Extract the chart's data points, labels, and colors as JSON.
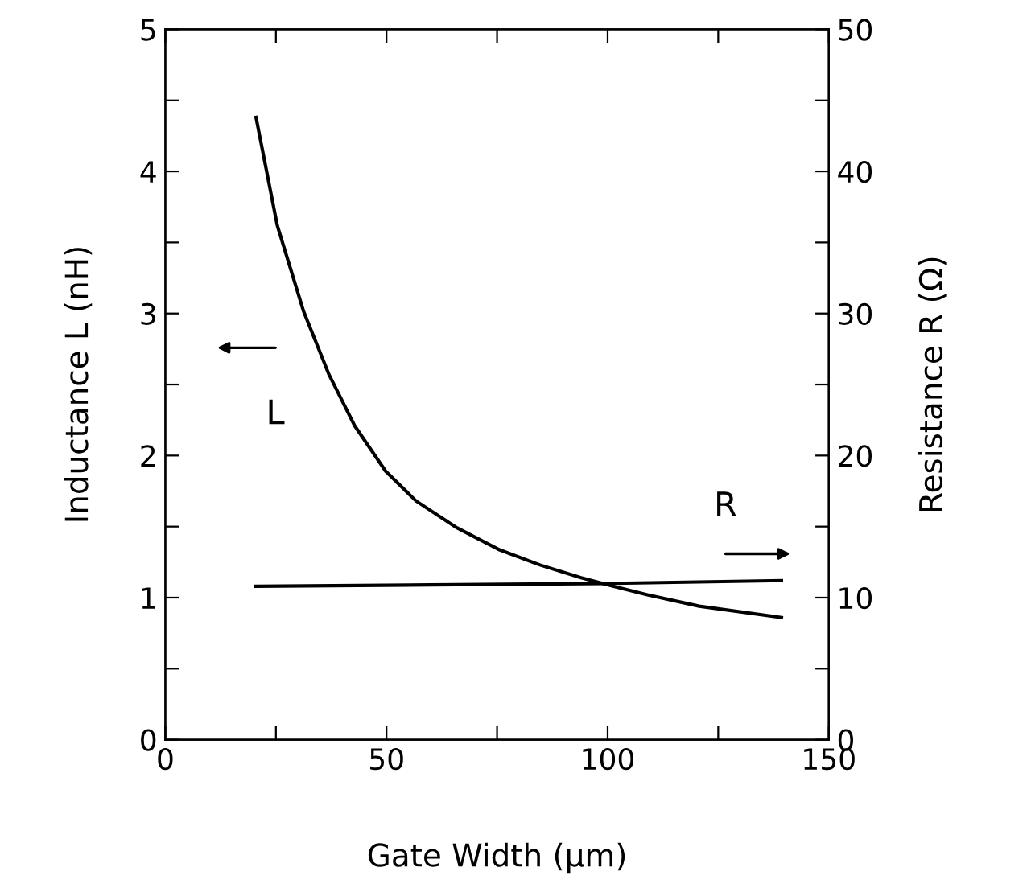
{
  "chart_data": {
    "type": "line",
    "xlabel": "Gate Width (μm)",
    "ylabel": "Inductance L (nH)",
    "y2label": "Resistance R (Ω)",
    "series": [
      {
        "name": "L",
        "color": "#000000",
        "x": [
          20.5,
          25.3,
          31.2,
          37,
          42.8,
          49.8,
          56.7,
          66,
          75.3,
          84.7,
          94,
          100,
          109,
          120.7,
          139.3
        ],
        "values": [
          4.38,
          3.62,
          3.02,
          2.57,
          2.21,
          1.89,
          1.68,
          1.49,
          1.34,
          1.23,
          1.14,
          1.09,
          1.02,
          0.94,
          0.86
        ]
      },
      {
        "name": "R",
        "color": "#000000",
        "axis": "y2",
        "x": [
          20.5,
          60,
          100,
          139.3
        ],
        "values": [
          10.8,
          10.9,
          11.0,
          11.2
        ]
      }
    ],
    "xlim": [
      0,
      150
    ],
    "xticks": [
      0,
      {
        "value": 25,
        "label": null
      },
      50,
      {
        "value": 75,
        "label": null
      },
      100,
      {
        "value": 125,
        "label": null
      },
      150
    ],
    "ylim": [
      0,
      5
    ],
    "yticks": [
      0,
      {
        "value": 0.5,
        "label": null
      },
      1,
      {
        "value": 1.5,
        "label": null
      },
      2,
      {
        "value": 2.5,
        "label": null
      },
      3,
      {
        "value": 3.5,
        "label": null
      },
      4,
      {
        "value": 4.5,
        "label": null
      },
      5
    ],
    "y2lim": [
      0,
      50
    ],
    "y2ticks": [
      0,
      {
        "value": 5,
        "label": null
      },
      10,
      {
        "value": 15,
        "label": null
      },
      20,
      {
        "value": 25,
        "label": null
      },
      30,
      {
        "value": 35,
        "label": null
      },
      40,
      {
        "value": 45,
        "label": null
      },
      50
    ],
    "grid": false,
    "legend": false,
    "marker": "none",
    "line_style": "solid"
  }
}
